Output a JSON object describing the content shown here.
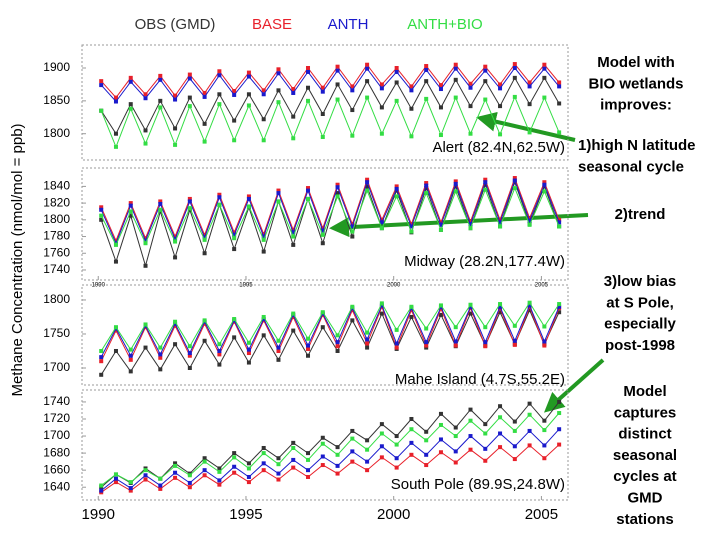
{
  "legend": [
    {
      "name": "OBS (GMD)",
      "color": "#333333"
    },
    {
      "name": "BASE",
      "color": "#e8202a"
    },
    {
      "name": "ANTH",
      "color": "#1a1acc"
    },
    {
      "name": "ANTH+BIO",
      "color": "#33dd44"
    }
  ],
  "y_label": "Methane Concentration (nmol/mol = ppb)",
  "annotations": [
    [
      "Model with",
      "BIO wetlands",
      "improves:"
    ],
    [
      "1)high N latitude",
      "seasonal cycle"
    ],
    [
      "2)trend"
    ],
    [
      "3)low bias",
      "at S Pole,",
      "especially",
      "post-1998"
    ],
    [
      "Model",
      "captures",
      "distinct",
      "seasonal",
      "cycles at",
      "GMD",
      "stations"
    ]
  ],
  "chart_data": [
    {
      "type": "line",
      "title": "Alert (82.4N,62.5W)",
      "x": [
        1990.1,
        1990.6,
        1991.1,
        1991.6,
        1992.1,
        1992.6,
        1993.1,
        1993.6,
        1994.1,
        1994.6,
        1995.1,
        1995.6,
        1996.1,
        1996.6,
        1997.1,
        1997.6,
        1998.1,
        1998.6,
        1999.1,
        1999.6,
        2000.1,
        2000.6,
        2001.1,
        2001.6,
        2002.1,
        2002.6,
        2003.1,
        2003.6,
        2004.1,
        2004.6,
        2005.1,
        2005.6
      ],
      "xlim": [
        1989.45,
        2005.9
      ],
      "ylim": [
        1760,
        1935
      ],
      "yticks": [
        1800,
        1850,
        1900
      ],
      "series": [
        {
          "values": [
            1835,
            1800,
            1845,
            1805,
            1850,
            1808,
            1855,
            1815,
            1860,
            1820,
            1860,
            1822,
            1866,
            1826,
            1870,
            1830,
            1875,
            1836,
            1880,
            1840,
            1878,
            1838,
            1880,
            1840,
            1882,
            1842,
            1880,
            1842,
            1885,
            1845,
            1885,
            1846
          ]
        },
        {
          "values": [
            1880,
            1855,
            1885,
            1860,
            1888,
            1858,
            1890,
            1862,
            1895,
            1865,
            1893,
            1866,
            1898,
            1868,
            1900,
            1870,
            1902,
            1872,
            1905,
            1875,
            1900,
            1872,
            1903,
            1874,
            1905,
            1876,
            1902,
            1875,
            1906,
            1878,
            1905,
            1878
          ]
        },
        {
          "values": [
            1874,
            1849,
            1879,
            1854,
            1882,
            1852,
            1884,
            1856,
            1889,
            1859,
            1887,
            1860,
            1892,
            1862,
            1894,
            1864,
            1896,
            1866,
            1899,
            1869,
            1894,
            1866,
            1897,
            1868,
            1899,
            1870,
            1896,
            1869,
            1900,
            1872,
            1899,
            1872
          ]
        },
        {
          "values": [
            1835,
            1780,
            1838,
            1785,
            1840,
            1783,
            1842,
            1788,
            1845,
            1790,
            1843,
            1790,
            1848,
            1793,
            1850,
            1795,
            1852,
            1797,
            1855,
            1800,
            1850,
            1796,
            1853,
            1798,
            1855,
            1800,
            1852,
            1799,
            1856,
            1802,
            1855,
            1802
          ]
        }
      ]
    },
    {
      "type": "line",
      "title": "Midway (28.2N,177.4W)",
      "x": [
        1990.1,
        1990.6,
        1991.1,
        1991.6,
        1992.1,
        1992.6,
        1993.1,
        1993.6,
        1994.1,
        1994.6,
        1995.1,
        1995.6,
        1996.1,
        1996.6,
        1997.1,
        1997.6,
        1998.1,
        1998.6,
        1999.1,
        1999.6,
        2000.1,
        2000.6,
        2001.1,
        2001.6,
        2002.1,
        2002.6,
        2003.1,
        2003.6,
        2004.1,
        2004.6,
        2005.1,
        2005.6
      ],
      "xlim": [
        1989.45,
        2005.9
      ],
      "ylim": [
        1728,
        1862
      ],
      "yticks": [
        1740,
        1760,
        1780,
        1800,
        1820,
        1840
      ],
      "xticks": [
        1990,
        1995,
        2000,
        2005
      ],
      "series": [
        {
          "values": [
            1800,
            1750,
            1805,
            1745,
            1810,
            1755,
            1812,
            1760,
            1818,
            1765,
            1815,
            1762,
            1822,
            1770,
            1825,
            1772,
            1832,
            1780,
            1840,
            1790,
            1835,
            1785,
            1838,
            1788,
            1840,
            1790,
            1842,
            1792,
            1845,
            1795,
            1840,
            1792
          ]
        },
        {
          "values": [
            1815,
            1775,
            1820,
            1778,
            1822,
            1780,
            1825,
            1782,
            1830,
            1785,
            1828,
            1783,
            1835,
            1788,
            1838,
            1790,
            1842,
            1795,
            1848,
            1800,
            1840,
            1795,
            1844,
            1797,
            1846,
            1798,
            1848,
            1800,
            1850,
            1802,
            1845,
            1800
          ]
        },
        {
          "values": [
            1812,
            1772,
            1817,
            1775,
            1819,
            1777,
            1822,
            1779,
            1827,
            1782,
            1825,
            1780,
            1832,
            1785,
            1835,
            1787,
            1839,
            1792,
            1845,
            1797,
            1837,
            1792,
            1841,
            1794,
            1843,
            1795,
            1845,
            1797,
            1847,
            1799,
            1842,
            1797
          ]
        },
        {
          "values": [
            1805,
            1770,
            1810,
            1772,
            1812,
            1774,
            1814,
            1776,
            1818,
            1778,
            1816,
            1776,
            1822,
            1780,
            1825,
            1782,
            1828,
            1786,
            1835,
            1790,
            1828,
            1786,
            1832,
            1788,
            1834,
            1790,
            1836,
            1792,
            1838,
            1794,
            1834,
            1792
          ]
        }
      ]
    },
    {
      "type": "line",
      "title": "Mahe Island (4.7S,55.2E)",
      "x": [
        1990.1,
        1990.6,
        1991.1,
        1991.6,
        1992.1,
        1992.6,
        1993.1,
        1993.6,
        1994.1,
        1994.6,
        1995.1,
        1995.6,
        1996.1,
        1996.6,
        1997.1,
        1997.6,
        1998.1,
        1998.6,
        1999.1,
        1999.6,
        2000.1,
        2000.6,
        2001.1,
        2001.6,
        2002.1,
        2002.6,
        2003.1,
        2003.6,
        2004.1,
        2004.6,
        2005.1,
        2005.6
      ],
      "xlim": [
        1989.45,
        2005.9
      ],
      "ylim": [
        1675,
        1822
      ],
      "yticks": [
        1700,
        1750,
        1800
      ],
      "series": [
        {
          "values": [
            1690,
            1725,
            1695,
            1730,
            1698,
            1735,
            1700,
            1740,
            1705,
            1745,
            1708,
            1748,
            1712,
            1755,
            1718,
            1760,
            1725,
            1770,
            1730,
            1780,
            1728,
            1775,
            1730,
            1778,
            1732,
            1780,
            1733,
            1782,
            1735,
            1785,
            1735,
            1782
          ]
        },
        {
          "values": [
            1710,
            1755,
            1712,
            1760,
            1715,
            1762,
            1718,
            1765,
            1720,
            1768,
            1722,
            1770,
            1725,
            1775,
            1728,
            1778,
            1732,
            1785,
            1736,
            1790,
            1730,
            1785,
            1733,
            1787,
            1733,
            1788,
            1732,
            1788,
            1734,
            1790,
            1733,
            1788
          ]
        },
        {
          "values": [
            1716,
            1758,
            1718,
            1762,
            1720,
            1765,
            1722,
            1768,
            1725,
            1770,
            1727,
            1772,
            1730,
            1778,
            1733,
            1780,
            1738,
            1788,
            1742,
            1792,
            1736,
            1788,
            1738,
            1790,
            1739,
            1790,
            1738,
            1790,
            1740,
            1792,
            1739,
            1790
          ]
        },
        {
          "values": [
            1725,
            1760,
            1727,
            1764,
            1730,
            1768,
            1732,
            1770,
            1735,
            1772,
            1737,
            1775,
            1740,
            1780,
            1743,
            1782,
            1748,
            1790,
            1752,
            1795,
            1756,
            1790,
            1758,
            1792,
            1760,
            1793,
            1760,
            1794,
            1762,
            1796,
            1761,
            1794
          ]
        }
      ]
    },
    {
      "type": "line",
      "title": "South Pole (89.9S,24.8W)",
      "x": [
        1990.1,
        1990.6,
        1991.1,
        1991.6,
        1992.1,
        1992.6,
        1993.1,
        1993.6,
        1994.1,
        1994.6,
        1995.1,
        1995.6,
        1996.1,
        1996.6,
        1997.1,
        1997.6,
        1998.1,
        1998.6,
        1999.1,
        1999.6,
        2000.1,
        2000.6,
        2001.1,
        2001.6,
        2002.1,
        2002.6,
        2003.1,
        2003.6,
        2004.1,
        2004.6,
        2005.1,
        2005.6
      ],
      "xlim": [
        1989.45,
        2005.9
      ],
      "ylim": [
        1625,
        1754
      ],
      "yticks": [
        1640,
        1660,
        1680,
        1700,
        1720,
        1740
      ],
      "xticks": [
        1990,
        1995,
        2000,
        2005
      ],
      "series": [
        {
          "values": [
            1640,
            1655,
            1645,
            1662,
            1650,
            1668,
            1656,
            1674,
            1662,
            1680,
            1668,
            1686,
            1674,
            1692,
            1680,
            1698,
            1687,
            1706,
            1695,
            1714,
            1700,
            1720,
            1705,
            1726,
            1710,
            1731,
            1714,
            1735,
            1717,
            1738,
            1718,
            1740
          ]
        },
        {
          "values": [
            1634,
            1646,
            1636,
            1649,
            1638,
            1651,
            1640,
            1654,
            1643,
            1657,
            1646,
            1660,
            1649,
            1663,
            1652,
            1666,
            1656,
            1670,
            1660,
            1675,
            1663,
            1678,
            1666,
            1681,
            1669,
            1684,
            1671,
            1687,
            1673,
            1689,
            1674,
            1690
          ]
        },
        {
          "values": [
            1636,
            1650,
            1639,
            1654,
            1642,
            1657,
            1645,
            1660,
            1648,
            1664,
            1652,
            1668,
            1656,
            1672,
            1660,
            1676,
            1665,
            1682,
            1670,
            1688,
            1674,
            1692,
            1678,
            1696,
            1682,
            1700,
            1685,
            1703,
            1688,
            1706,
            1689,
            1708
          ]
        },
        {
          "values": [
            1642,
            1655,
            1646,
            1660,
            1650,
            1665,
            1654,
            1670,
            1658,
            1675,
            1662,
            1680,
            1667,
            1686,
            1672,
            1691,
            1678,
            1697,
            1684,
            1703,
            1690,
            1708,
            1695,
            1713,
            1700,
            1718,
            1703,
            1722,
            1706,
            1725,
            1707,
            1727
          ]
        }
      ]
    }
  ]
}
